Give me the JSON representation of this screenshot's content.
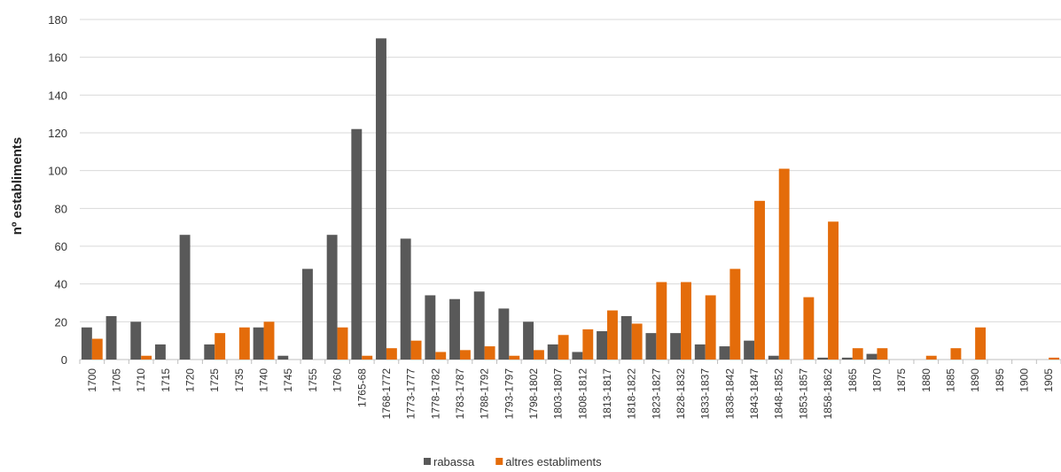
{
  "chart_data": {
    "type": "bar",
    "ylabel": "nº establiments",
    "xlabel": "",
    "ylim": [
      0,
      180
    ],
    "y_ticks": [
      0,
      20,
      40,
      60,
      80,
      100,
      120,
      140,
      160,
      180
    ],
    "grid": "horizontal",
    "legend_position": "bottom",
    "categories": [
      "1700",
      "1705",
      "1710",
      "1715",
      "1720",
      "1725",
      "1735",
      "1740",
      "1745",
      "1755",
      "1760",
      "1765-68",
      "1768-1772",
      "1773-1777",
      "1778-1782",
      "1783-1787",
      "1788-1792",
      "1793-1797",
      "1798-1802",
      "1803-1807",
      "1808-1812",
      "1813-1817",
      "1818-1822",
      "1823-1827",
      "1828-1832",
      "1833-1837",
      "1838-1842",
      "1843-1847",
      "1848-1852",
      "1853-1857",
      "1858-1862",
      "1865",
      "1870",
      "1875",
      "1880",
      "1885",
      "1890",
      "1895",
      "1900",
      "1905"
    ],
    "series": [
      {
        "name": "rabassa",
        "color": "#595959",
        "values": [
          17,
          23,
          20,
          8,
          66,
          8,
          0,
          17,
          2,
          48,
          66,
          122,
          170,
          64,
          34,
          32,
          36,
          27,
          20,
          8,
          4,
          15,
          23,
          14,
          14,
          8,
          7,
          10,
          2,
          0,
          1,
          1,
          3,
          0,
          0,
          0,
          0,
          0,
          0,
          0
        ]
      },
      {
        "name": "altres establiments",
        "color": "#e46c0a",
        "values": [
          11,
          0,
          2,
          0,
          0,
          14,
          17,
          20,
          0,
          0,
          17,
          2,
          6,
          10,
          4,
          5,
          7,
          2,
          5,
          13,
          16,
          26,
          19,
          41,
          41,
          34,
          48,
          84,
          101,
          33,
          73,
          6,
          6,
          0,
          2,
          6,
          17,
          0,
          0,
          1
        ]
      }
    ]
  }
}
